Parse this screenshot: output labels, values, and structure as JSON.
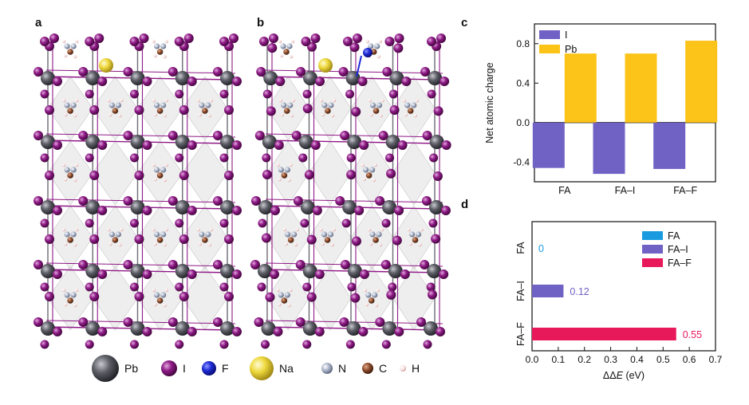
{
  "panels": {
    "a": "a",
    "b": "b",
    "c": "c",
    "d": "d"
  },
  "legend": [
    {
      "symbol": "Pb",
      "label": "Pb",
      "color": "#55565e"
    },
    {
      "symbol": "I",
      "label": "I",
      "color": "#8e1a86"
    },
    {
      "symbol": "F",
      "label": "F",
      "color": "#1f2bd6"
    },
    {
      "symbol": "Na",
      "label": "Na",
      "color": "#e9d33a"
    },
    {
      "symbol": "N",
      "label": "N",
      "color": "#a9b3c8"
    },
    {
      "symbol": "C",
      "label": "C",
      "color": "#8a4a2b"
    },
    {
      "symbol": "H",
      "label": "H",
      "color": "#f5dede"
    }
  ],
  "chart_data": [
    {
      "panel": "c",
      "type": "bar",
      "categories": [
        "FA",
        "FA–I",
        "FA–F"
      ],
      "series": [
        {
          "name": "I",
          "values": [
            -0.46,
            -0.52,
            -0.47
          ],
          "color": "#6f62c4"
        },
        {
          "name": "Pb",
          "values": [
            0.7,
            0.7,
            0.83
          ],
          "color": "#fcc419"
        }
      ],
      "ylabel": "Net atomic charge",
      "yticks": [
        "-0.4",
        "0.0",
        "0.4",
        "0.8"
      ],
      "ytick_values": [
        -0.4,
        0.0,
        0.4,
        0.8
      ],
      "ylim": [
        -0.6,
        1.0
      ],
      "legend_position": "top-left"
    },
    {
      "panel": "d",
      "type": "bar",
      "orientation": "horizontal",
      "categories": [
        "FA",
        "FA–I",
        "FA–F"
      ],
      "values": [
        0,
        0.12,
        0.55
      ],
      "value_labels": [
        "0",
        "0.12",
        "0.55"
      ],
      "colors": [
        "#1a9be0",
        "#6f62c4",
        "#e8195b"
      ],
      "series_names": [
        "FA",
        "FA–I",
        "FA–F"
      ],
      "xlabel_prefix": "ΔΔ",
      "xlabel_var": "E",
      "xlabel_unit": " (eV)",
      "xticks": [
        "0.0",
        "0.1",
        "0.2",
        "0.3",
        "0.4",
        "0.5",
        "0.6",
        "0.7"
      ],
      "xtick_values": [
        0.0,
        0.1,
        0.2,
        0.3,
        0.4,
        0.5,
        0.6,
        0.7
      ],
      "xlim": [
        0,
        0.7
      ],
      "legend_position": "top-right"
    }
  ]
}
